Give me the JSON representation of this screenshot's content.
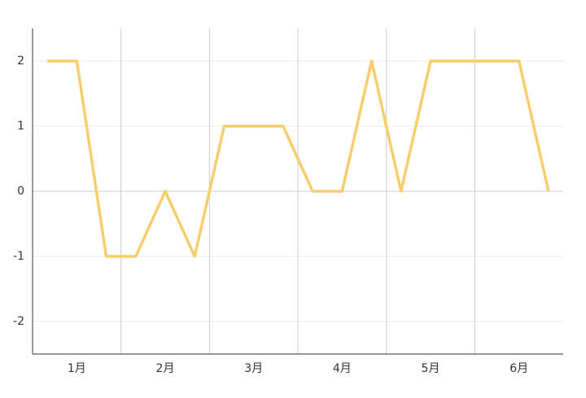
{
  "chart_data": {
    "type": "line",
    "categories": [
      null,
      "1月",
      null,
      null,
      "2月",
      null,
      null,
      "3月",
      null,
      null,
      "4月",
      null,
      null,
      "5月",
      null,
      null,
      "6月",
      null
    ],
    "series": [
      {
        "color": "#f7cd6e",
        "values": [
          2,
          2,
          -1,
          -1,
          0,
          -1,
          1,
          1,
          1,
          0,
          0,
          2,
          0,
          2,
          2,
          2,
          2,
          0
        ]
      }
    ],
    "ylim": [
      -2.5,
      2.5
    ],
    "yticks": [
      -2,
      -1,
      0,
      1,
      2
    ],
    "grid": true
  }
}
